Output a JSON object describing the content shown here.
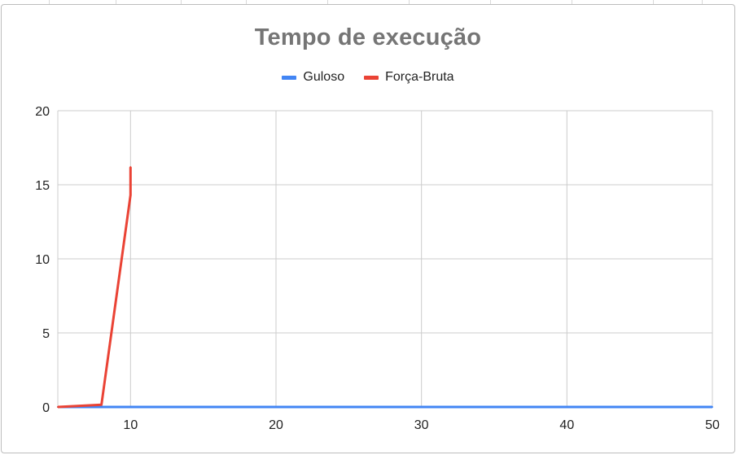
{
  "chart_data": {
    "type": "line",
    "title": "Tempo de execução",
    "xlabel": "",
    "ylabel": "",
    "xlim": [
      5,
      50
    ],
    "ylim": [
      0,
      20
    ],
    "x_ticks": [
      10,
      20,
      30,
      40,
      50
    ],
    "y_ticks": [
      0,
      5,
      10,
      15,
      20
    ],
    "grid": true,
    "legend_position": "top",
    "series": [
      {
        "name": "Guloso",
        "color": "#4285f4",
        "x": [
          5,
          8,
          10,
          10,
          50
        ],
        "y": [
          0,
          0,
          0,
          0,
          0
        ]
      },
      {
        "name": "Força-Bruta",
        "color": "#ea4335",
        "x": [
          5,
          8,
          10,
          10
        ],
        "y": [
          0,
          0.15,
          14.3,
          16.2
        ]
      }
    ]
  }
}
